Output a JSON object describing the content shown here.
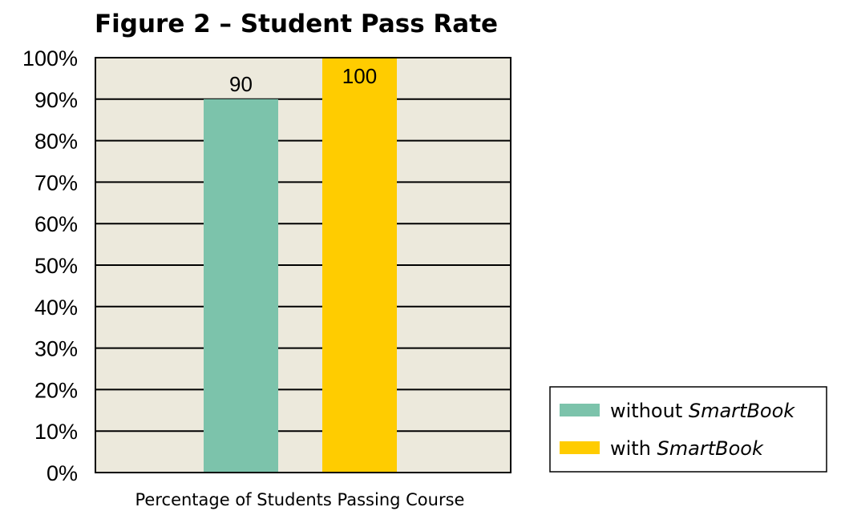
{
  "chart_data": {
    "type": "bar",
    "title": "Figure 2 – Student Pass Rate",
    "xlabel": "Percentage of Students Passing Course",
    "ylabel": "",
    "ylim": [
      0,
      100
    ],
    "y_ticks": [
      "0%",
      "10%",
      "20%",
      "30%",
      "40%",
      "50%",
      "60%",
      "70%",
      "80%",
      "90%",
      "100%"
    ],
    "categories": [
      "Percentage of Students Passing Course"
    ],
    "series": [
      {
        "name": "without SmartBook",
        "name_prefix": "without ",
        "name_emphasis": "SmartBook",
        "values": [
          90
        ],
        "value_labels": [
          "90"
        ],
        "color": "#7cc3ab"
      },
      {
        "name": "with SmartBook",
        "name_prefix": "with ",
        "name_emphasis": "SmartBook",
        "values": [
          100
        ],
        "value_labels": [
          "100"
        ],
        "color": "#ffcc00"
      }
    ],
    "grid": true,
    "plot_background": "#ece9dc",
    "legend": "bottom-right"
  }
}
